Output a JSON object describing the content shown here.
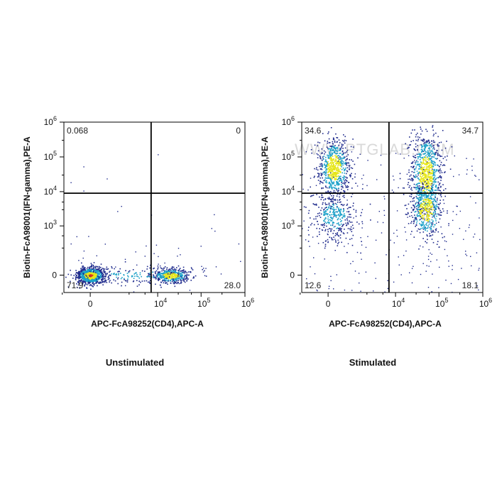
{
  "colors": {
    "density_low": "#1e2a8c",
    "density_mid": "#1aa0c8",
    "density_high": "#e6e61a",
    "density_peak": "#e0301e",
    "gate_line": "#000000"
  },
  "chart_data": [
    {
      "type": "scatter",
      "subtype": "flow-cytometry-density-dotplot",
      "condition": "Unstimulated",
      "xlabel": "APC-FcA98252(CD4),APC-A",
      "ylabel": "Biotin-FcA98001(IFN-gamma),PE-A",
      "x_scale": "biexponential",
      "y_scale": "biexponential",
      "x_ticks": [
        "0",
        "10^4",
        "10^5",
        "10^6"
      ],
      "y_ticks": [
        "0",
        "10^3",
        "10^4",
        "10^5",
        "10^6"
      ],
      "quadrants": {
        "upper_left": "0.068",
        "upper_right": "0",
        "lower_left": "71.9",
        "lower_right": "28.0"
      },
      "populations": [
        {
          "x_center": 0,
          "y_center": 0,
          "density": "high"
        },
        {
          "x_center": 20000,
          "y_center": 0,
          "density": "medium"
        }
      ],
      "watermark": ""
    },
    {
      "type": "scatter",
      "subtype": "flow-cytometry-density-dotplot",
      "condition": "Stimulated",
      "xlabel": "APC-FcA98252(CD4),APC-A",
      "ylabel": "Biotin-FcA98001(IFN-gamma),PE-A",
      "x_scale": "biexponential",
      "y_scale": "biexponential",
      "x_ticks": [
        "0",
        "10^4",
        "10^5",
        "10^6"
      ],
      "y_ticks": [
        "0",
        "10^3",
        "10^4",
        "10^5",
        "10^6"
      ],
      "quadrants": {
        "upper_left": "34.6",
        "upper_right": "34.7",
        "lower_left": "12.6",
        "lower_right": "18.1"
      },
      "populations": [
        {
          "x_center": 100,
          "y_center": 50000,
          "density": "high"
        },
        {
          "x_center": 50000,
          "y_center": 30000,
          "density": "high"
        },
        {
          "x_center": 100,
          "y_center": 2000,
          "density": "medium"
        },
        {
          "x_center": 50000,
          "y_center": 3000,
          "density": "medium"
        }
      ],
      "watermark": "WWW.PTGLAB.COM"
    }
  ]
}
